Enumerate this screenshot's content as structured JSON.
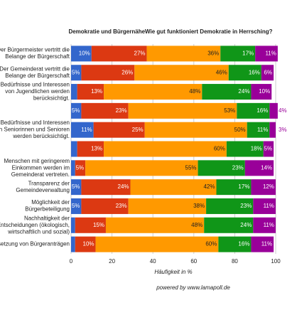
{
  "chart_data": {
    "type": "stacked-bar-horizontal",
    "title": "Demokratie und BürgernäheWie gut funktioniert Demokratie in Herrsching?",
    "categories": [
      "Der Bürgermeister vertritt die Belange der Bürgerschaft",
      "Der Gemeinderat vertritt die Belange der Bürgerschaft",
      "e Bedürfnisse und Interessen von Jugendlichen werden berücksichtigt.",
      null,
      "e Bedürfnisse und Interessen von Seniorinnen und Senioren werden berücksichtigt.",
      null,
      "Menschen mit geringerem Einkommen werden im Gemeinderat vertreten.",
      "Transparenz der Gemeindeverwaltung",
      "Möglichkeit der Bürgerbeteiligung",
      "Nachhaltigkeit der Entscheidungen (ökologisch, wirtschaftlich und sozial)",
      "nsetzung von Bürgeranträgen"
    ],
    "series": [
      {
        "color": "#3366cc",
        "values": [
          10,
          5,
          3,
          5,
          11,
          3,
          2,
          5,
          5,
          2,
          2
        ],
        "value_labels": [
          "10%",
          "5%",
          null,
          "5%",
          "11%",
          null,
          null,
          "5%",
          "5%",
          null,
          null
        ]
      },
      {
        "color": "#dc3912",
        "values": [
          27,
          26,
          13,
          23,
          25,
          13,
          5,
          24,
          23,
          15,
          10
        ],
        "value_labels": [
          "27%",
          "26%",
          "13%",
          "23%",
          "25%",
          "13%",
          "5%",
          "24%",
          "23%",
          "15%",
          "10%"
        ]
      },
      {
        "color": "#ff9900",
        "values": [
          36,
          46,
          48,
          53,
          50,
          60,
          55,
          42,
          38,
          48,
          60
        ],
        "value_labels": [
          "36%",
          "46%",
          "48%",
          "53%",
          "50%",
          "60%",
          "55%",
          "42%",
          "38%",
          "48%",
          "60%"
        ]
      },
      {
        "color": "#109618",
        "values": [
          17,
          16,
          24,
          16,
          11,
          18,
          23,
          17,
          23,
          24,
          16
        ],
        "value_labels": [
          "17%",
          "16%",
          "24%",
          "16%",
          "11%",
          "18%",
          "23%",
          "17%",
          "23%",
          "24%",
          "16%"
        ]
      },
      {
        "color": "#990099",
        "values": [
          11,
          6,
          10,
          4,
          3,
          5,
          14,
          12,
          11,
          11,
          11
        ],
        "value_labels": [
          "11%",
          "6%",
          "10%",
          "4%",
          "3%",
          "5%",
          "14%",
          "12%",
          "11%",
          "11%",
          "11%"
        ]
      }
    ],
    "xlim": [
      0,
      100
    ],
    "xticks": [
      0,
      20,
      40,
      60,
      80,
      100
    ],
    "grid": true,
    "xlabel": "Häufigkeit in %",
    "footer": "powered by www.lamapoll.de"
  }
}
